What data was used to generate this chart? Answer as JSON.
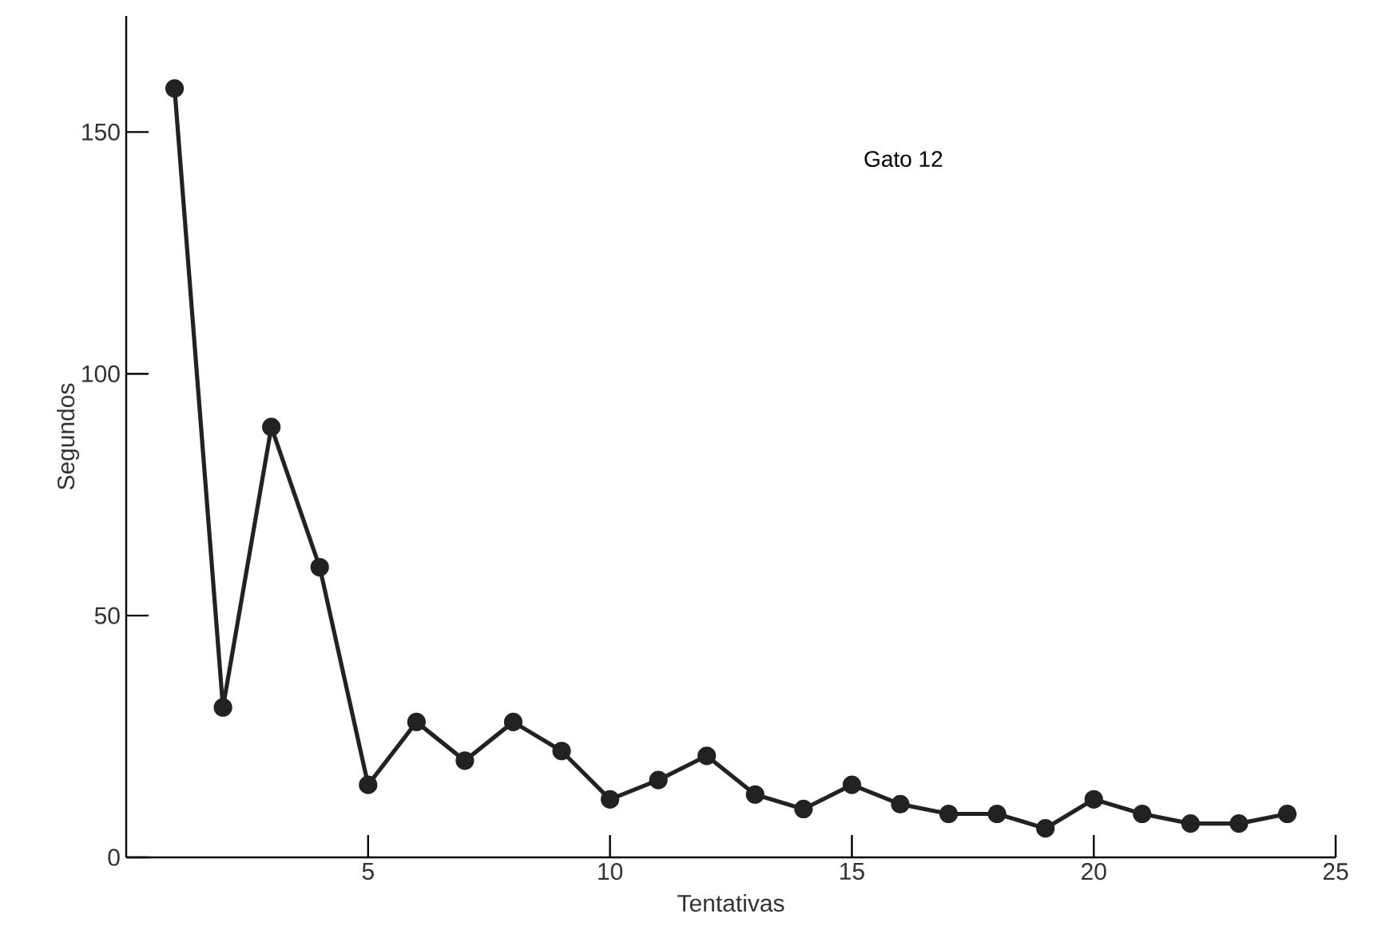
{
  "chart_data": {
    "type": "line",
    "xlabel": "Tentativas",
    "ylabel": "Segundos",
    "annotations": [
      "Gato 12"
    ],
    "xlim": [
      0,
      25
    ],
    "ylim": [
      0,
      174
    ],
    "xticks": [
      5,
      10,
      15,
      20,
      25
    ],
    "yticks": [
      0,
      50,
      100,
      150
    ],
    "marker": "circle",
    "line_style": "solid",
    "series": [
      {
        "color": "#222222",
        "x": [
          1,
          2,
          3,
          4,
          5,
          6,
          7,
          8,
          9,
          10,
          11,
          12,
          13,
          14,
          15,
          16,
          17,
          18,
          19,
          20,
          21,
          22,
          23,
          24
        ],
        "values": [
          159,
          31,
          89,
          60,
          15,
          28,
          20,
          28,
          22,
          12,
          16,
          21,
          13,
          10,
          15,
          11,
          9,
          9,
          6,
          12,
          9,
          7,
          7,
          9
        ]
      }
    ]
  }
}
